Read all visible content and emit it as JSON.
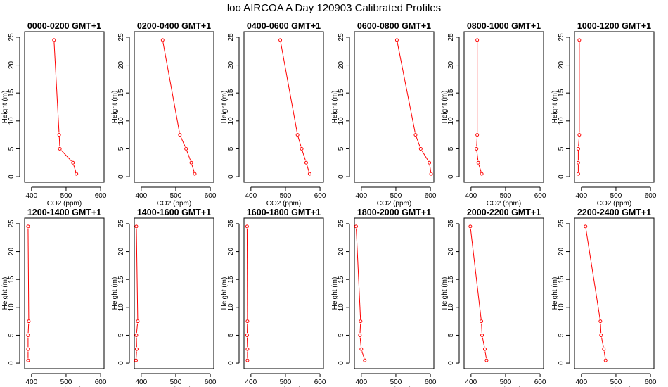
{
  "figure": {
    "title": "loo AIRCOA A  Day 120903  Calibrated Profiles",
    "series_color": "#ff0000"
  },
  "chart_data": [
    {
      "type": "line",
      "title": "0000-0200 GMT+1",
      "xlabel": "CO2 (ppm)",
      "ylabel": "Height (m)",
      "xlim": [
        380,
        610
      ],
      "ylim": [
        -1,
        26
      ],
      "xticks": [
        400,
        500,
        600
      ],
      "yticks": [
        0,
        5,
        10,
        15,
        20,
        25
      ],
      "series": [
        {
          "x": [
            530,
            520,
            482,
            480,
            465
          ],
          "y": [
            0.5,
            2.5,
            5,
            7.5,
            24.5
          ]
        }
      ]
    },
    {
      "type": "line",
      "title": "0200-0400 GMT+1",
      "xlabel": "CO2 (ppm)",
      "ylabel": "Height (m)",
      "xlim": [
        380,
        610
      ],
      "ylim": [
        -1,
        26
      ],
      "xticks": [
        400,
        500,
        600
      ],
      "yticks": [
        0,
        5,
        10,
        15,
        20,
        25
      ],
      "series": [
        {
          "x": [
            555,
            545,
            530,
            512,
            462
          ],
          "y": [
            0.5,
            2.5,
            5,
            7.5,
            24.5
          ]
        }
      ]
    },
    {
      "type": "line",
      "title": "0400-0600 GMT+1",
      "xlabel": "CO2 (ppm)",
      "ylabel": "Height (m)",
      "xlim": [
        380,
        610
      ],
      "ylim": [
        -1,
        26
      ],
      "xticks": [
        400,
        500,
        600
      ],
      "yticks": [
        0,
        5,
        10,
        15,
        20,
        25
      ],
      "series": [
        {
          "x": [
            570,
            560,
            547,
            535,
            485
          ],
          "y": [
            0.5,
            2.5,
            5,
            7.5,
            24.5
          ]
        }
      ]
    },
    {
      "type": "line",
      "title": "0600-0800 GMT+1",
      "xlabel": "CO2 (ppm)",
      "ylabel": "Height (m)",
      "xlim": [
        380,
        610
      ],
      "ylim": [
        -1,
        26
      ],
      "xticks": [
        400,
        500,
        600
      ],
      "yticks": [
        0,
        5,
        10,
        15,
        20,
        25
      ],
      "series": [
        {
          "x": [
            602,
            597,
            572,
            557,
            503
          ],
          "y": [
            0.5,
            2.5,
            5,
            7.5,
            24.5
          ]
        }
      ]
    },
    {
      "type": "line",
      "title": "0800-1000 GMT+1",
      "xlabel": "CO2 (ppm)",
      "ylabel": "Height (m)",
      "xlim": [
        380,
        610
      ],
      "ylim": [
        -1,
        26
      ],
      "xticks": [
        400,
        500,
        600
      ],
      "yticks": [
        0,
        5,
        10,
        15,
        20,
        25
      ],
      "series": [
        {
          "x": [
            431,
            421,
            416,
            418,
            418
          ],
          "y": [
            0.5,
            2.5,
            5,
            7.5,
            24.5
          ]
        }
      ]
    },
    {
      "type": "line",
      "title": "1000-1200 GMT+1",
      "xlabel": "CO2 (ppm)",
      "ylabel": "Height (m)",
      "xlim": [
        380,
        610
      ],
      "ylim": [
        -1,
        26
      ],
      "xticks": [
        400,
        500,
        600
      ],
      "yticks": [
        0,
        5,
        10,
        15,
        20,
        25
      ],
      "series": [
        {
          "x": [
            391,
            391,
            391,
            394,
            394
          ],
          "y": [
            0.5,
            2.5,
            5,
            7.5,
            24.5
          ]
        }
      ]
    },
    {
      "type": "line",
      "title": "1200-1400 GMT+1",
      "xlabel": "CO2 (ppm)",
      "ylabel": "Height (m)",
      "xlim": [
        380,
        610
      ],
      "ylim": [
        -1,
        26
      ],
      "xticks": [
        400,
        500,
        600
      ],
      "yticks": [
        0,
        5,
        10,
        15,
        20,
        25
      ],
      "series": [
        {
          "x": [
            390,
            390,
            390,
            392,
            390
          ],
          "y": [
            0.5,
            2.5,
            5,
            7.5,
            24.5
          ]
        }
      ]
    },
    {
      "type": "line",
      "title": "1400-1600 GMT+1",
      "xlabel": "CO2 (ppm)",
      "ylabel": "Height (m)",
      "xlim": [
        380,
        610
      ],
      "ylim": [
        -1,
        26
      ],
      "xticks": [
        400,
        500,
        600
      ],
      "yticks": [
        0,
        5,
        10,
        15,
        20,
        25
      ],
      "series": [
        {
          "x": [
            385,
            387,
            386,
            390,
            386
          ],
          "y": [
            0.5,
            2.5,
            5,
            7.5,
            24.5
          ]
        }
      ]
    },
    {
      "type": "line",
      "title": "1600-1800 GMT+1",
      "xlabel": "CO2 (ppm)",
      "ylabel": "Height (m)",
      "xlim": [
        380,
        610
      ],
      "ylim": [
        -1,
        26
      ],
      "xticks": [
        400,
        500,
        600
      ],
      "yticks": [
        0,
        5,
        10,
        15,
        20,
        25
      ],
      "series": [
        {
          "x": [
            390,
            390,
            389,
            390,
            389
          ],
          "y": [
            0.5,
            2.5,
            5,
            7.5,
            24.5
          ]
        }
      ]
    },
    {
      "type": "line",
      "title": "1800-2000 GMT+1",
      "xlabel": "CO2 (ppm)",
      "ylabel": "Height (m)",
      "xlim": [
        380,
        610
      ],
      "ylim": [
        -1,
        26
      ],
      "xticks": [
        400,
        500,
        600
      ],
      "yticks": [
        0,
        5,
        10,
        15,
        20,
        25
      ],
      "series": [
        {
          "x": [
            410,
            400,
            396,
            398,
            385
          ],
          "y": [
            0.5,
            2.5,
            5,
            7.5,
            24.5
          ]
        }
      ]
    },
    {
      "type": "line",
      "title": "2000-2200 GMT+1",
      "xlabel": "CO2 (ppm)",
      "ylabel": "Height (m)",
      "xlim": [
        380,
        610
      ],
      "ylim": [
        -1,
        26
      ],
      "xticks": [
        400,
        500,
        600
      ],
      "yticks": [
        0,
        5,
        10,
        15,
        20,
        25
      ],
      "series": [
        {
          "x": [
            445,
            440,
            432,
            430,
            398
          ],
          "y": [
            0.5,
            2.5,
            5,
            7.5,
            24.5
          ]
        }
      ]
    },
    {
      "type": "line",
      "title": "2200-2400 GMT+1",
      "xlabel": "CO2 (ppm)",
      "ylabel": "Height (m)",
      "xlim": [
        380,
        610
      ],
      "ylim": [
        -1,
        26
      ],
      "xticks": [
        400,
        500,
        600
      ],
      "yticks": [
        0,
        5,
        10,
        15,
        20,
        25
      ],
      "series": [
        {
          "x": [
            470,
            465,
            457,
            455,
            412
          ],
          "y": [
            0.5,
            2.5,
            5,
            7.5,
            24.5
          ]
        }
      ]
    }
  ]
}
